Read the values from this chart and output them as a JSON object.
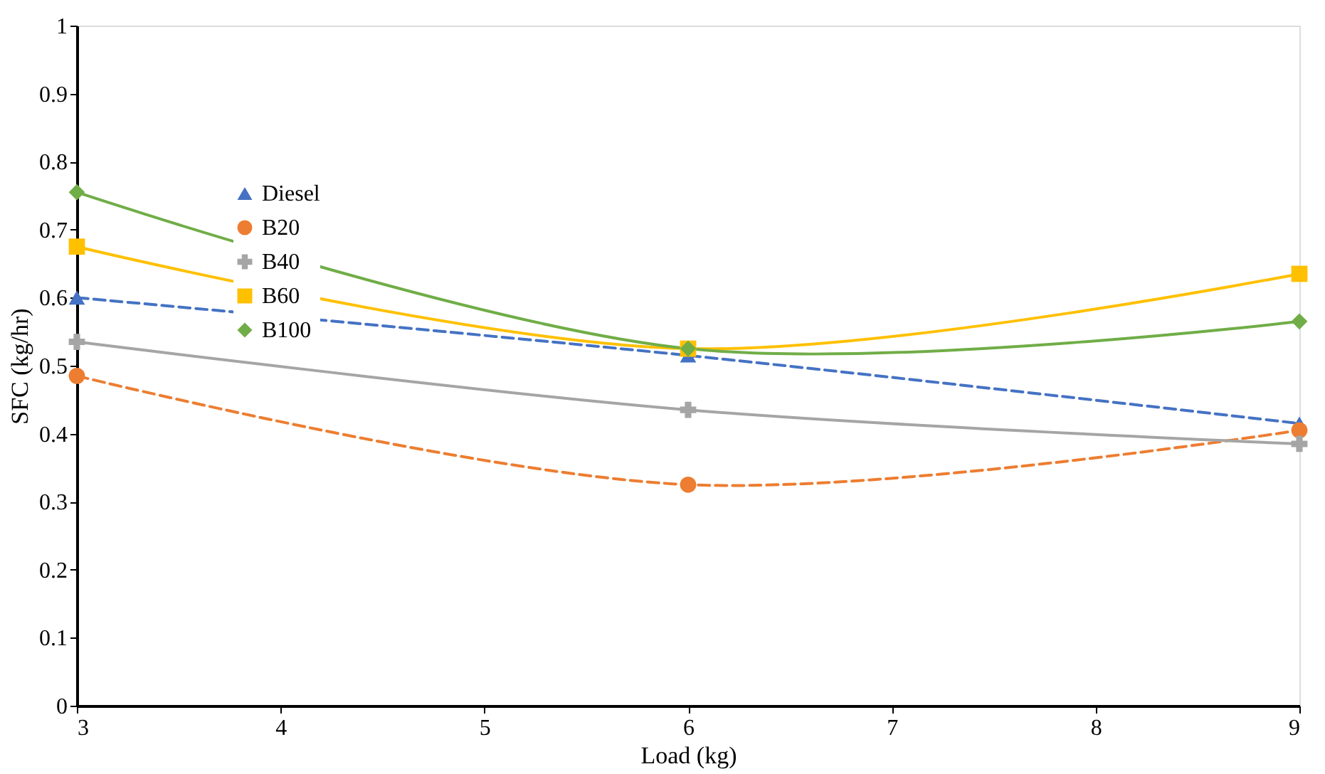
{
  "chart_data": {
    "type": "line",
    "xlabel": "Load (kg)",
    "ylabel": "SFC (kg/hr)",
    "x": [
      3,
      6,
      9
    ],
    "xlim": [
      3,
      9
    ],
    "xticks": [
      3,
      4,
      5,
      6,
      7,
      8,
      9
    ],
    "ylim": [
      0,
      1
    ],
    "yticks": [
      0,
      0.1,
      0.2,
      0.3,
      0.4,
      0.5,
      0.6,
      0.7,
      0.8,
      0.9,
      1
    ],
    "grid": false,
    "legend": "top left",
    "series": [
      {
        "name": "Diesel",
        "color": "#4472c4",
        "values": [
          0.6,
          0.515,
          0.415
        ],
        "marker": "triangle",
        "line_style": "dashed"
      },
      {
        "name": "B20",
        "color": "#ed7d31",
        "values": [
          0.485,
          0.325,
          0.405
        ],
        "marker": "circle",
        "line_style": "dashed"
      },
      {
        "name": "B40",
        "color": "#a5a5a5",
        "values": [
          0.535,
          0.435,
          0.385
        ],
        "marker": "cross",
        "line_style": "solid"
      },
      {
        "name": "B60",
        "color": "#ffc000",
        "values": [
          0.675,
          0.525,
          0.635
        ],
        "marker": "square",
        "line_style": "solid"
      },
      {
        "name": "B100",
        "color": "#70ad47",
        "values": [
          0.755,
          0.525,
          0.565
        ],
        "marker": "diamond",
        "line_style": "solid"
      }
    ]
  }
}
